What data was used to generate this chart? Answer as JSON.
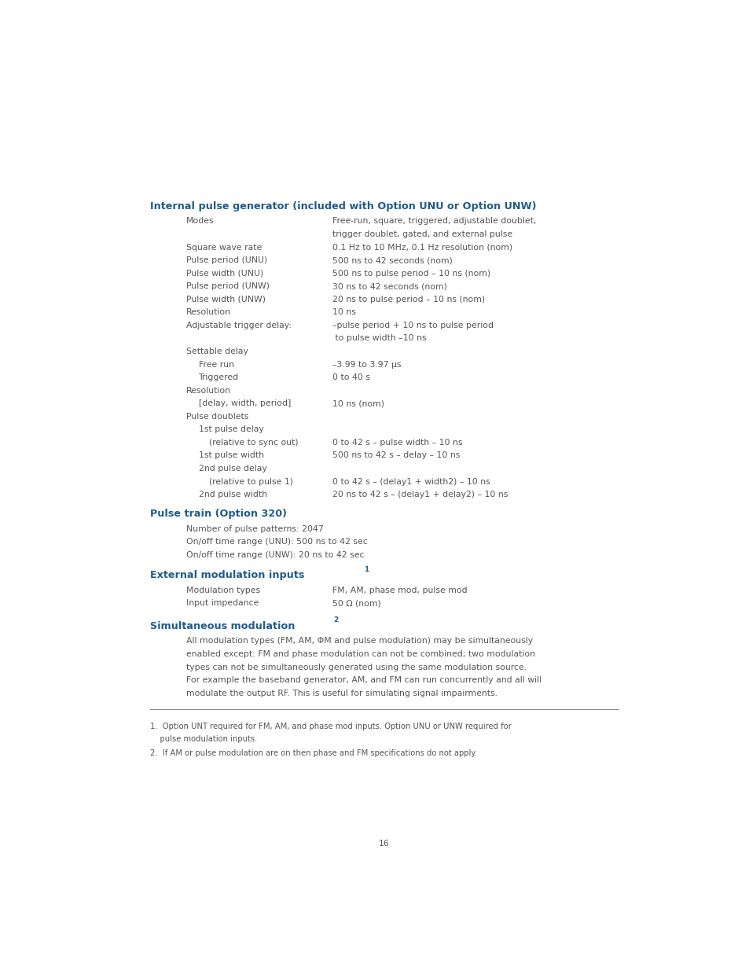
{
  "bg_color": "#ffffff",
  "heading_color": "#1F5C8B",
  "text_color": "#555555",
  "page_width": 9.54,
  "page_height": 12.35,
  "section1_title": "Internal pulse generator (included with Option UNU or Option UNW)",
  "section2_title": "Pulse train (Option 320)",
  "section3_title": "External modulation inputs ",
  "section3_sup": "1",
  "section4_title": "Simultaneous modulation ",
  "section4_sup": "2",
  "rows": [
    {
      "label": "Modes",
      "value": "Free-run, square, triggered, adjustable doublet,\ntrigger doublet, gated, and external pulse",
      "indent": 1
    },
    {
      "label": "Square wave rate",
      "value": "0.1 Hz to 10 MHz, 0.1 Hz resolution (nom)",
      "indent": 1
    },
    {
      "label": "Pulse period (UNU)",
      "value": "500 ns to 42 seconds (nom)",
      "indent": 1
    },
    {
      "label": "Pulse width (UNU)",
      "value": "500 ns to pulse period – 10 ns (nom)",
      "indent": 1
    },
    {
      "label": "Pulse period (UNW)",
      "value": "30 ns to 42 seconds (nom)",
      "indent": 1
    },
    {
      "label": "Pulse width (UNW)",
      "value": "20 ns to pulse period – 10 ns (nom)",
      "indent": 1
    },
    {
      "label": "Resolution",
      "value": "10 ns",
      "indent": 1
    },
    {
      "label": "Adjustable trigger delay:",
      "value": "–pulse period + 10 ns to pulse period\n to pulse width –10 ns",
      "indent": 1
    },
    {
      "label": "Settable delay",
      "value": "",
      "indent": 1
    },
    {
      "label": "Free run",
      "value": "–3.99 to 3.97 μs",
      "indent": 2
    },
    {
      "label": "Triggered",
      "value": "0 to 40 s",
      "indent": 2
    },
    {
      "label": "Resolution",
      "value": "",
      "indent": 1
    },
    {
      "label": "[delay, width, period]",
      "value": "10 ns (nom)",
      "indent": 2
    },
    {
      "label": "Pulse doublets",
      "value": "",
      "indent": 1
    },
    {
      "label": "1st pulse delay",
      "value": "",
      "indent": 2
    },
    {
      "label": "(relative to sync out)",
      "value": "0 to 42 s – pulse width – 10 ns",
      "indent": 3
    },
    {
      "label": "1st pulse width",
      "value": "500 ns to 42 s – delay – 10 ns",
      "indent": 2
    },
    {
      "label": "2nd pulse delay",
      "value": "",
      "indent": 2
    },
    {
      "label": "(relative to pulse 1)",
      "value": "0 to 42 s – (delay1 + width2) – 10 ns",
      "indent": 3
    },
    {
      "label": "2nd pulse width",
      "value": "20 ns to 42 s – (delay1 + delay2) – 10 ns",
      "indent": 2
    }
  ],
  "pulse_train_rows": [
    "Number of pulse patterns: 2047",
    "On/off time range (UNU): 500 ns to 42 sec",
    "On/off time range (UNW): 20 ns to 42 sec"
  ],
  "ext_mod_rows": [
    {
      "label": "Modulation types",
      "value": "FM, AM, phase mod, pulse mod"
    },
    {
      "label": "Input impedance",
      "value": "50 Ω (nom)"
    }
  ],
  "sim_mod_text": "All modulation types (FM, AM, ΦM and pulse modulation) may be simultaneously\nenabled except: FM and phase modulation can not be combined; two modulation\ntypes can not be simultaneously generated using the same modulation source.\nFor example the baseband generator, AM, and FM can run concurrently and all will\nmodulate the output RF. This is useful for simulating signal impairments.",
  "footnote1_a": "1.  Option UNT required for FM, AM, and phase mod inputs. Option UNU or UNW required for",
  "footnote1_b": "    pulse modulation inputs.",
  "footnote2": "2.  If AM or pulse modulation are on then phase and FM specifications do not apply.",
  "page_number": "16"
}
